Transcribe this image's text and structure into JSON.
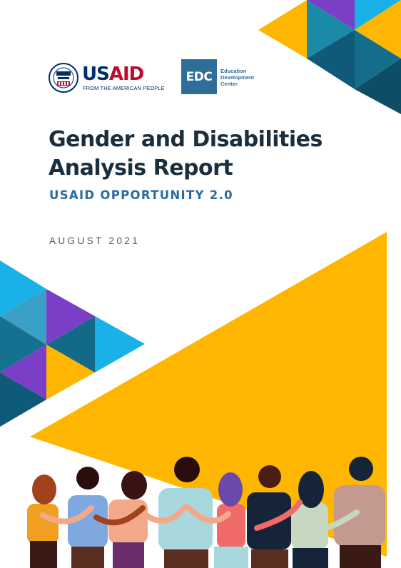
{
  "logos": {
    "usaid": {
      "word_us": "US",
      "word_aid": "AID",
      "tagline": "FROM THE AMERICAN PEOPLE"
    },
    "edc": {
      "abbr": "EDC",
      "line1": "Education",
      "line2": "Development",
      "line3": "Center"
    }
  },
  "report": {
    "title_line1": "Gender and Disabilities",
    "title_line2": "Analysis Report",
    "subtitle": "USAID OPPORTUNITY 2.0",
    "date": "AUGUST 2021"
  },
  "colors": {
    "yellow": "#ffb600",
    "purple": "#7a3fc6",
    "sky": "#1ab0e8",
    "teal": "#1b8aa8",
    "dark_teal": "#0e5a78",
    "navy_text": "#1a2e3d",
    "subtitle_blue": "#2a6ba0"
  }
}
